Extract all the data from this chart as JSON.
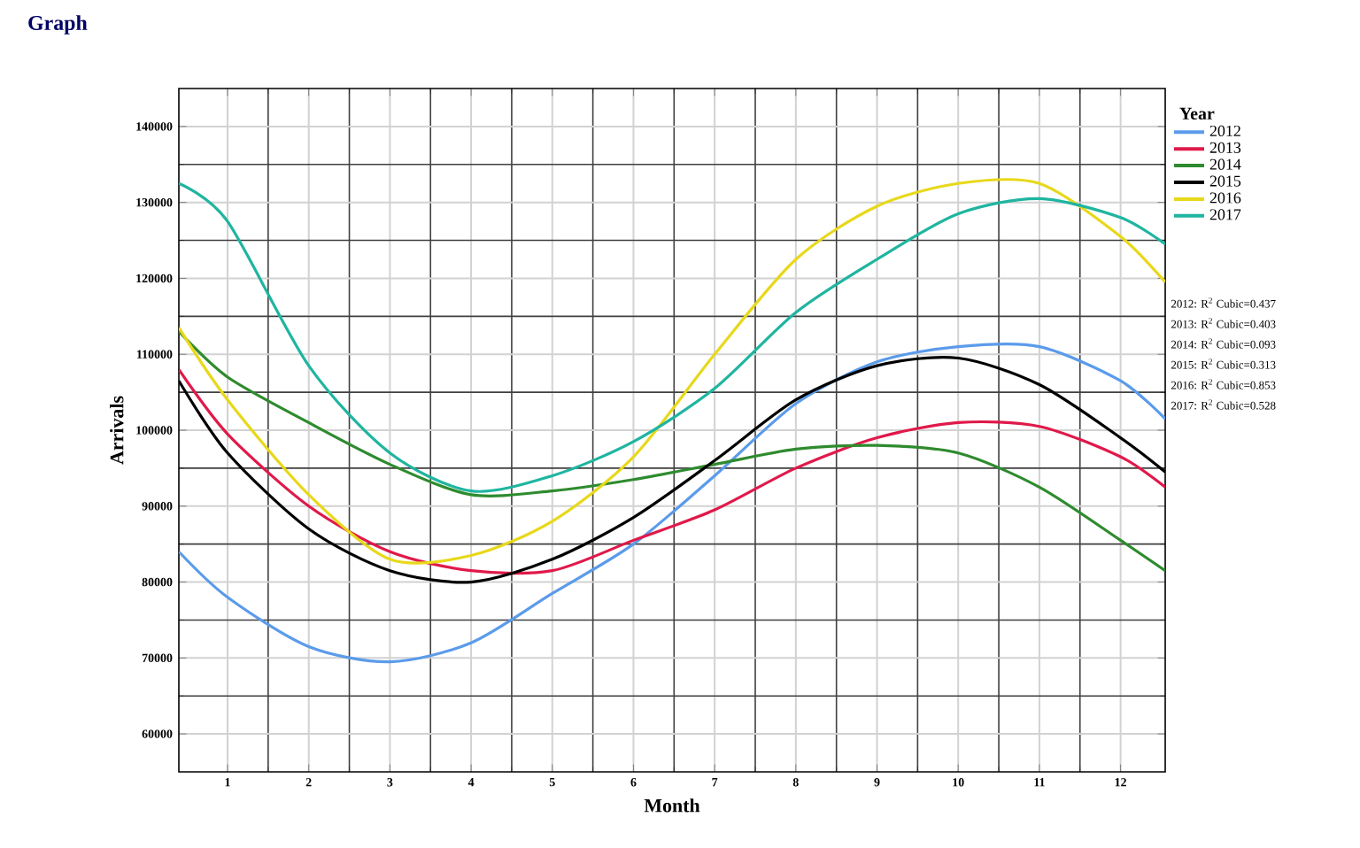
{
  "chart_data": {
    "type": "line",
    "title": "Graph",
    "xlabel": "Month",
    "ylabel": "Arrivals",
    "legend_title": "Year",
    "x": [
      0.4,
      1,
      2,
      3,
      4,
      5,
      6,
      7,
      8,
      9,
      10,
      11,
      12,
      12.55
    ],
    "series": [
      {
        "name": "2012",
        "color": "#5b9bea",
        "values": [
          84000,
          78000,
          71500,
          69500,
          72000,
          78500,
          85000,
          94000,
          103500,
          109000,
          111000,
          111000,
          106500,
          101500
        ]
      },
      {
        "name": "2013",
        "color": "#e0194a",
        "values": [
          108000,
          99500,
          90000,
          84000,
          81500,
          81500,
          85500,
          89500,
          95000,
          99000,
          101000,
          100500,
          96500,
          92500
        ]
      },
      {
        "name": "2014",
        "color": "#2e8b2e",
        "values": [
          113000,
          107000,
          101000,
          95500,
          91500,
          92000,
          93500,
          95500,
          97500,
          98000,
          97000,
          92500,
          85500,
          81500
        ]
      },
      {
        "name": "2015",
        "color": "#000000",
        "values": [
          106500,
          97000,
          87000,
          81500,
          80000,
          83000,
          88500,
          96000,
          104000,
          108500,
          109500,
          106000,
          99000,
          94500
        ]
      },
      {
        "name": "2016",
        "color": "#e8d81a",
        "values": [
          113500,
          104000,
          91500,
          83000,
          83500,
          88000,
          96500,
          110000,
          122500,
          129500,
          132500,
          132500,
          125500,
          119500
        ]
      },
      {
        "name": "2017",
        "color": "#1fb5a0",
        "values": [
          132500,
          127500,
          108500,
          97000,
          92000,
          94000,
          98500,
          105500,
          115500,
          122500,
          128500,
          130500,
          128000,
          124500
        ]
      }
    ],
    "xlim": [
      0.4,
      12.55
    ],
    "ylim": [
      55000,
      145000
    ],
    "xticks": [
      1,
      2,
      3,
      4,
      5,
      6,
      7,
      8,
      9,
      10,
      11,
      12
    ],
    "yticks": [
      60000,
      70000,
      80000,
      90000,
      100000,
      110000,
      120000,
      130000,
      140000
    ],
    "grid": true,
    "legend": "right",
    "annotations": [
      "2012: R$^{2}$ Cubic=0.437",
      "2013: R$^{2}$ Cubic=0.403",
      "2014: R$^{2}$ Cubic=0.093",
      "2015: R$^{2}$ Cubic=0.313",
      "2016: R$^{2}$ Cubic=0.853",
      "2017: R$^{2}$ Cubic=0.528"
    ]
  }
}
